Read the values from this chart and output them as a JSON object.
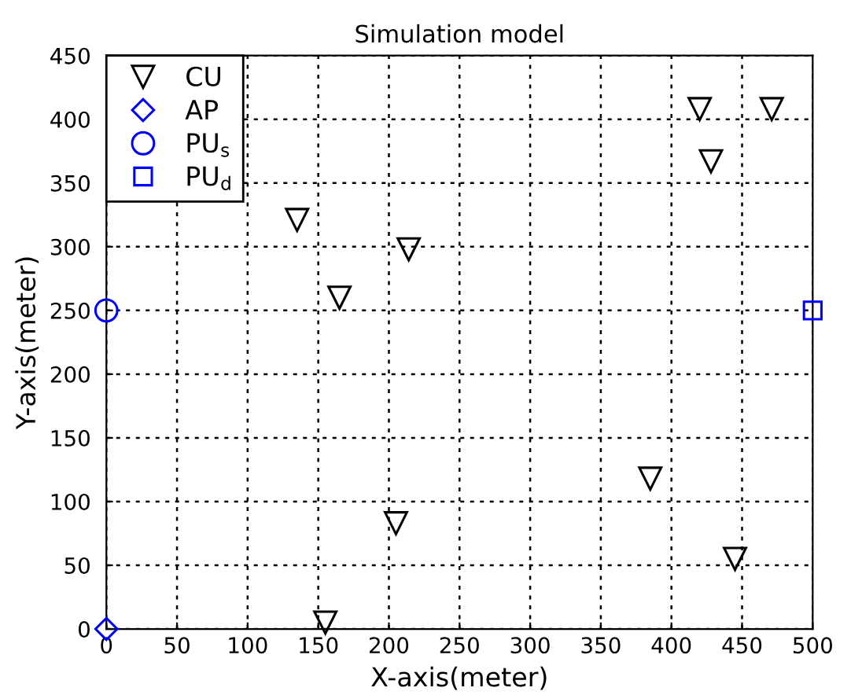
{
  "chart_data": {
    "type": "scatter",
    "title": "Simulation model",
    "xlabel": "X-axis(meter)",
    "ylabel": "Y-axis(meter)",
    "xlim": [
      0,
      500
    ],
    "ylim": [
      0,
      450
    ],
    "xticks": [
      0,
      50,
      100,
      150,
      200,
      250,
      300,
      350,
      400,
      450,
      500
    ],
    "yticks": [
      0,
      50,
      100,
      150,
      200,
      250,
      300,
      350,
      400,
      450
    ],
    "grid": true,
    "legend": "top left",
    "series": [
      {
        "name": "CU",
        "color": "#000000",
        "marker": "triangle_down",
        "x": [
          135,
          165,
          214,
          155,
          205,
          385,
          445,
          420,
          428,
          471
        ],
        "values": [
          321,
          260,
          298,
          5,
          83,
          118,
          55,
          408,
          367,
          408
        ]
      },
      {
        "name": "AP",
        "color": "#0000ff",
        "marker": "diamond",
        "x": [
          0
        ],
        "values": [
          0
        ]
      },
      {
        "name": "PU$_{s}$",
        "color": "#0000ff",
        "marker": "circle",
        "x": [
          0
        ],
        "values": [
          250
        ]
      },
      {
        "name": "PU$_{d}$",
        "color": "#0000ff",
        "marker": "square",
        "x": [
          500
        ],
        "values": [
          250
        ]
      }
    ]
  }
}
